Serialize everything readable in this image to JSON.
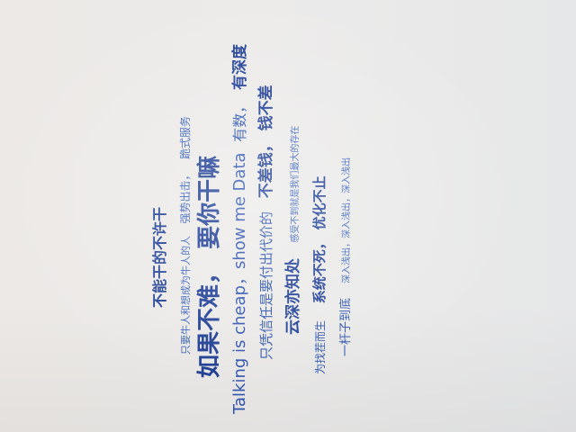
{
  "lines": {
    "l1": {
      "a": "不能干的不许干"
    },
    "l2": {
      "a": "只要牛人和想成为牛人的人",
      "b": "强势出击，",
      "c": "跪式服务"
    },
    "l3": {
      "a": "如果不难，",
      "b": "要你干嘛",
      "c": "有深度"
    },
    "l4": {
      "a": "Talking is cheap，show me Data",
      "b": "有数，",
      "c": "有深度"
    },
    "l5": {
      "a": "只凭信任是要付出代价的",
      "b": "不差钱，",
      "c": "钱不差"
    },
    "l6": {
      "a": "云深亦知处",
      "b": "感受不到就是我们最大的存在"
    },
    "l7": {
      "a": "为找茬而生",
      "b": "系统不死，",
      "c": "优化不止"
    },
    "l8": {
      "a": "一杆子到底",
      "b": "深入浅出，深入浅出，深入浅出"
    }
  }
}
